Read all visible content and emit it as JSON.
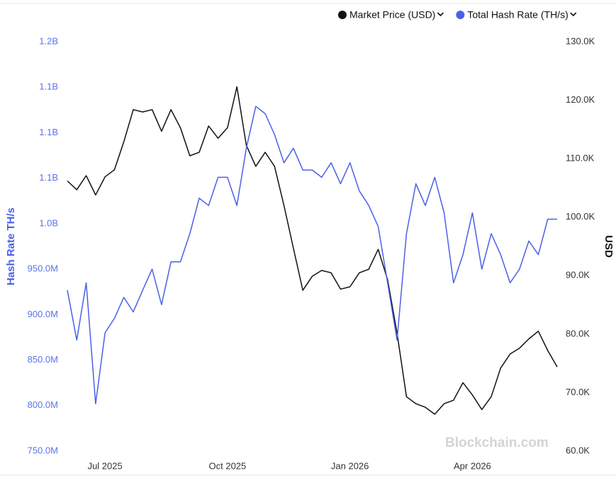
{
  "chart_data": {
    "type": "line",
    "categories": [
      null,
      null,
      null,
      null,
      "Jul 2025",
      null,
      null,
      null,
      null,
      null,
      null,
      null,
      null,
      null,
      null,
      null,
      null,
      "Oct 2025",
      null,
      null,
      null,
      null,
      null,
      null,
      null,
      null,
      null,
      null,
      null,
      null,
      "Jan 2026",
      null,
      null,
      null,
      null,
      null,
      null,
      null,
      null,
      null,
      null,
      null,
      null,
      "Apr 2026",
      null,
      null,
      null,
      null,
      null,
      null,
      null,
      null,
      null
    ],
    "y_label": "Hash Rate TH/s",
    "y2_label": "USD",
    "watermark": "Blockchain.com",
    "ylim": [
      750000000,
      1200000000
    ],
    "yticks": [
      {
        "value": 750000000,
        "label": "750.0M"
      },
      {
        "value": 800000000,
        "label": "800.0M"
      },
      {
        "value": 850000000,
        "label": "850.0M"
      },
      {
        "value": 900000000,
        "label": "900.0M"
      },
      {
        "value": 950000000,
        "label": "950.0M"
      },
      {
        "value": 1000000000,
        "label": "1.0B"
      },
      {
        "value": 1050000000,
        "label": "1.1B"
      },
      {
        "value": 1100000000,
        "label": "1.1B"
      },
      {
        "value": 1150000000,
        "label": "1.1B"
      },
      {
        "value": 1200000000,
        "label": "1.2B"
      }
    ],
    "y2lim": [
      60000,
      130000
    ],
    "y2ticks": [
      {
        "value": 60000,
        "label": "60.0K"
      },
      {
        "value": 70000,
        "label": "70.0K"
      },
      {
        "value": 80000,
        "label": "80.0K"
      },
      {
        "value": 90000,
        "label": "90.0K"
      },
      {
        "value": 100000,
        "label": "100.0K"
      },
      {
        "value": 110000,
        "label": "110.0K"
      },
      {
        "value": 120000,
        "label": "120.0K"
      },
      {
        "value": 130000,
        "label": "130.0K"
      }
    ],
    "series": [
      {
        "name": "Market Price (USD)",
        "color": "#111111",
        "axis": "y2",
        "values": [
          106200,
          104700,
          107100,
          103800,
          106900,
          108100,
          112900,
          118400,
          118000,
          118400,
          114700,
          118400,
          115300,
          110500,
          111100,
          115600,
          113500,
          115300,
          122300,
          112300,
          108700,
          111100,
          108700,
          102000,
          94700,
          87500,
          89900,
          90900,
          90500,
          87700,
          88100,
          90500,
          91100,
          94500,
          89300,
          80200,
          69300,
          68100,
          67500,
          66300,
          68100,
          68700,
          71700,
          69600,
          67100,
          69300,
          74200,
          76600,
          77600,
          79200,
          80500,
          77200,
          74400
        ]
      },
      {
        "name": "Total Hash Rate (TH/s)",
        "color": "#4a60e8",
        "values": [
          927000000,
          872000000,
          935000000,
          802000000,
          880000000,
          896000000,
          919000000,
          903000000,
          927000000,
          950000000,
          911000000,
          958000000,
          958000000,
          989000000,
          1028000000,
          1020000000,
          1051000000,
          1051000000,
          1020000000,
          1083000000,
          1129000000,
          1121000000,
          1098000000,
          1067000000,
          1083000000,
          1059000000,
          1059000000,
          1051000000,
          1067000000,
          1044000000,
          1067000000,
          1036000000,
          1020000000,
          997000000,
          935000000,
          872000000,
          989000000,
          1044000000,
          1020000000,
          1051000000,
          1012000000,
          935000000,
          966000000,
          1012000000,
          950000000,
          989000000,
          966000000,
          935000000,
          950000000,
          981000000,
          966000000,
          1005000000,
          1005000000
        ]
      }
    ]
  }
}
